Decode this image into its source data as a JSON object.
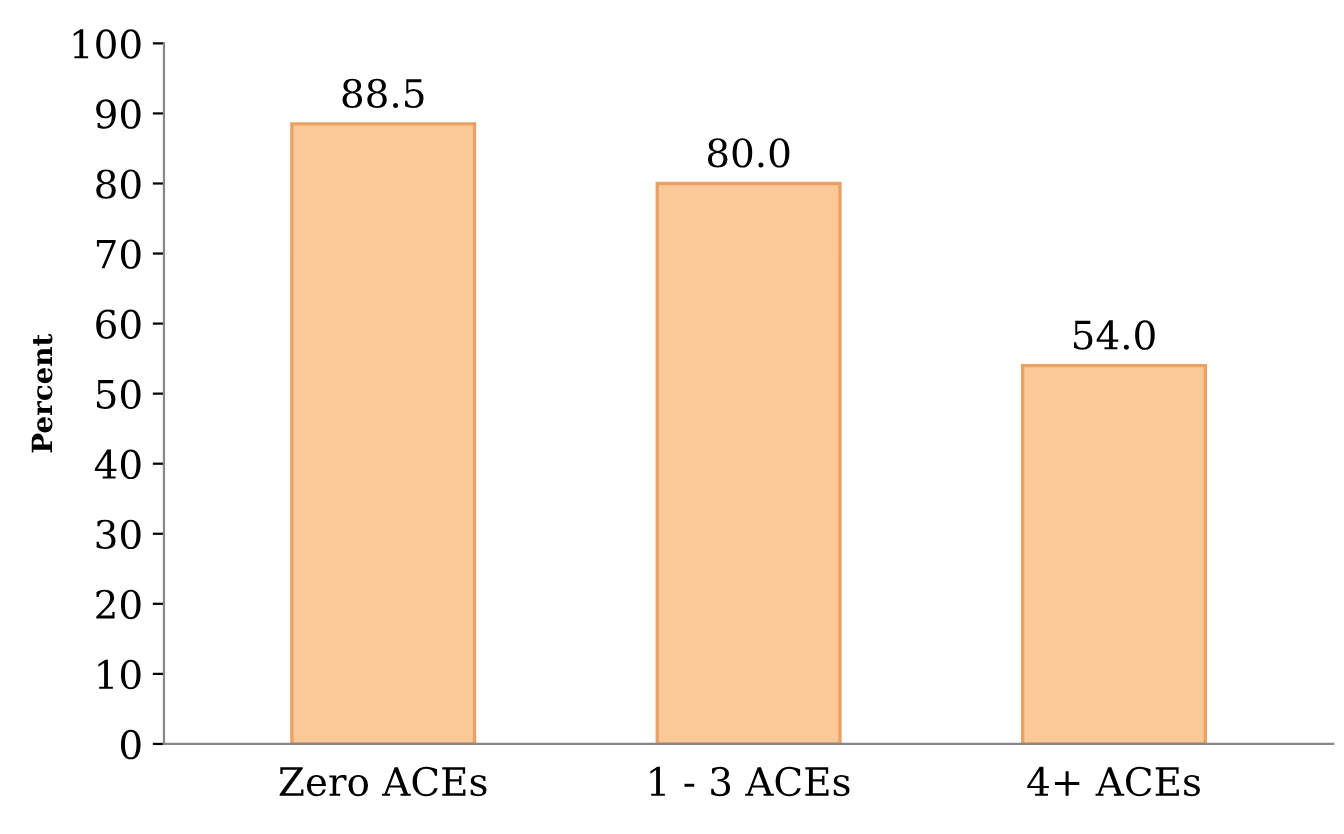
{
  "chart_data": {
    "type": "bar",
    "ylabel": "Percent",
    "categories": [
      "Zero ACEs",
      "1 - 3 ACEs",
      "4+ ACEs"
    ],
    "values": [
      88.5,
      80.0,
      54.0
    ],
    "value_labels": [
      "88.5",
      "80.0",
      "54.0"
    ],
    "color": "#fbc898",
    "ylim": [
      0,
      100
    ],
    "yticks": [
      0,
      10,
      20,
      30,
      40,
      50,
      60,
      70,
      80,
      90,
      100
    ],
    "grid": false,
    "legend": false
  }
}
